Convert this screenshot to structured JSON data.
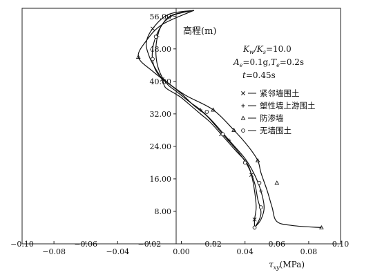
{
  "chart_data": {
    "type": "line",
    "xlabel": "τ_xy(MPa)",
    "ylabel": "高程(m)",
    "xlim": [
      -0.1,
      0.1
    ],
    "ylim": [
      0,
      58
    ],
    "x_ticks": [
      -0.1,
      -0.08,
      -0.06,
      -0.04,
      -0.02,
      0.0,
      0.02,
      0.04,
      0.06,
      0.08,
      0.1
    ],
    "x_tick_labels": [
      "−0.10",
      "−0.08",
      "−0.06",
      "−0.04",
      "−0.02",
      "0.00",
      "0.02",
      "0.04",
      "0.06",
      "0.08",
      "0.10"
    ],
    "y_ticks": [
      8,
      16,
      24,
      32,
      40,
      48,
      56
    ],
    "y_tick_labels": [
      "8.00",
      "16.00",
      "24.00",
      "32.00",
      "40.00",
      "48.00",
      "56.00"
    ],
    "annotations": {
      "ratio": "Kw/Ks=10.0",
      "ratio_parts": [
        "K",
        "w",
        "/K",
        "s",
        "=10.0"
      ],
      "accel": "Ae=0.1g,Te=0.2s",
      "accel_parts": [
        "A",
        "e",
        "=0.1g,",
        "T",
        "e",
        "=0.2s"
      ],
      "time": "t=0.45s",
      "time_parts": [
        "t",
        "=0.45s"
      ]
    },
    "legend_position": "right",
    "series": [
      {
        "name": "紧邻墙围土",
        "marker": "x",
        "color": "#111111",
        "points": [
          [
            0.008,
            57.5
          ],
          [
            -0.008,
            56.5
          ],
          [
            -0.018,
            53
          ],
          [
            -0.022,
            49.5
          ],
          [
            -0.02,
            46
          ],
          [
            -0.016,
            43
          ],
          [
            -0.012,
            40.5
          ],
          [
            -0.01,
            38.5
          ],
          [
            -0.004,
            37
          ],
          [
            0.0,
            36
          ],
          [
            0.006,
            34
          ],
          [
            0.012,
            32
          ],
          [
            0.018,
            30
          ],
          [
            0.025,
            27
          ],
          [
            0.034,
            23
          ],
          [
            0.041,
            20
          ],
          [
            0.044,
            17
          ],
          [
            0.046,
            13
          ],
          [
            0.047,
            9
          ],
          [
            0.046,
            6
          ],
          [
            0.046,
            4
          ]
        ],
        "marker_points": [
          [
            -0.018,
            53
          ],
          [
            -0.012,
            40.5
          ],
          [
            0.025,
            27
          ],
          [
            0.044,
            17
          ],
          [
            0.046,
            6
          ]
        ]
      },
      {
        "name": "塑性墙上游围土",
        "marker": "+",
        "color": "#111111",
        "points": [
          [
            0.008,
            57.5
          ],
          [
            -0.005,
            56.3
          ],
          [
            -0.012,
            54
          ],
          [
            -0.015,
            51
          ],
          [
            -0.016,
            47.5
          ],
          [
            -0.015,
            44
          ],
          [
            -0.012,
            41
          ],
          [
            -0.008,
            39
          ],
          [
            -0.003,
            37.5
          ],
          [
            0.005,
            35
          ],
          [
            0.012,
            33
          ],
          [
            0.02,
            30
          ],
          [
            0.03,
            25.5
          ],
          [
            0.04,
            21
          ],
          [
            0.046,
            17
          ],
          [
            0.05,
            13
          ],
          [
            0.052,
            9
          ],
          [
            0.05,
            6
          ],
          [
            0.046,
            4
          ]
        ],
        "marker_points": [
          [
            -0.015,
            51
          ],
          [
            0.012,
            33
          ],
          [
            0.03,
            25.5
          ],
          [
            0.05,
            13
          ]
        ]
      },
      {
        "name": "防渗墙",
        "marker": "triangle",
        "color": "#111111",
        "points": [
          [
            0.008,
            57.5
          ],
          [
            -0.012,
            54
          ],
          [
            -0.022,
            50
          ],
          [
            -0.027,
            46
          ],
          [
            -0.018,
            42.5
          ],
          [
            -0.008,
            39.5
          ],
          [
            0.003,
            36.5
          ],
          [
            0.02,
            33
          ],
          [
            0.033,
            28
          ],
          [
            0.042,
            24
          ],
          [
            0.048,
            20.5
          ],
          [
            0.05,
            17.5
          ],
          [
            0.054,
            13
          ],
          [
            0.057,
            9
          ],
          [
            0.06,
            5.5
          ],
          [
            0.07,
            4.5
          ],
          [
            0.088,
            4
          ]
        ],
        "marker_points": [
          [
            -0.027,
            46
          ],
          [
            0.02,
            33
          ],
          [
            0.033,
            28
          ],
          [
            0.048,
            20.5
          ],
          [
            0.06,
            15
          ],
          [
            0.088,
            4
          ]
        ]
      },
      {
        "name": "无墙围土",
        "marker": "circle",
        "color": "#111111",
        "points": [
          [
            0.008,
            57.5
          ],
          [
            -0.006,
            56.3
          ],
          [
            -0.012,
            54
          ],
          [
            -0.016,
            51
          ],
          [
            -0.018,
            48
          ],
          [
            -0.018,
            45
          ],
          [
            -0.015,
            42
          ],
          [
            -0.008,
            39.5
          ],
          [
            0.0,
            37
          ],
          [
            0.008,
            34
          ],
          [
            0.016,
            31.5
          ],
          [
            0.026,
            27
          ],
          [
            0.036,
            22.5
          ],
          [
            0.042,
            19
          ],
          [
            0.046,
            15
          ],
          [
            0.048,
            11
          ],
          [
            0.05,
            8
          ],
          [
            0.049,
            6
          ],
          [
            0.046,
            4
          ]
        ],
        "marker_points": [
          [
            -0.016,
            51
          ],
          [
            -0.018,
            45.5
          ],
          [
            0.016,
            32.5
          ],
          [
            0.026,
            27
          ],
          [
            0.04,
            20
          ],
          [
            0.049,
            15
          ],
          [
            0.05,
            9
          ],
          [
            0.046,
            4
          ]
        ]
      }
    ]
  }
}
